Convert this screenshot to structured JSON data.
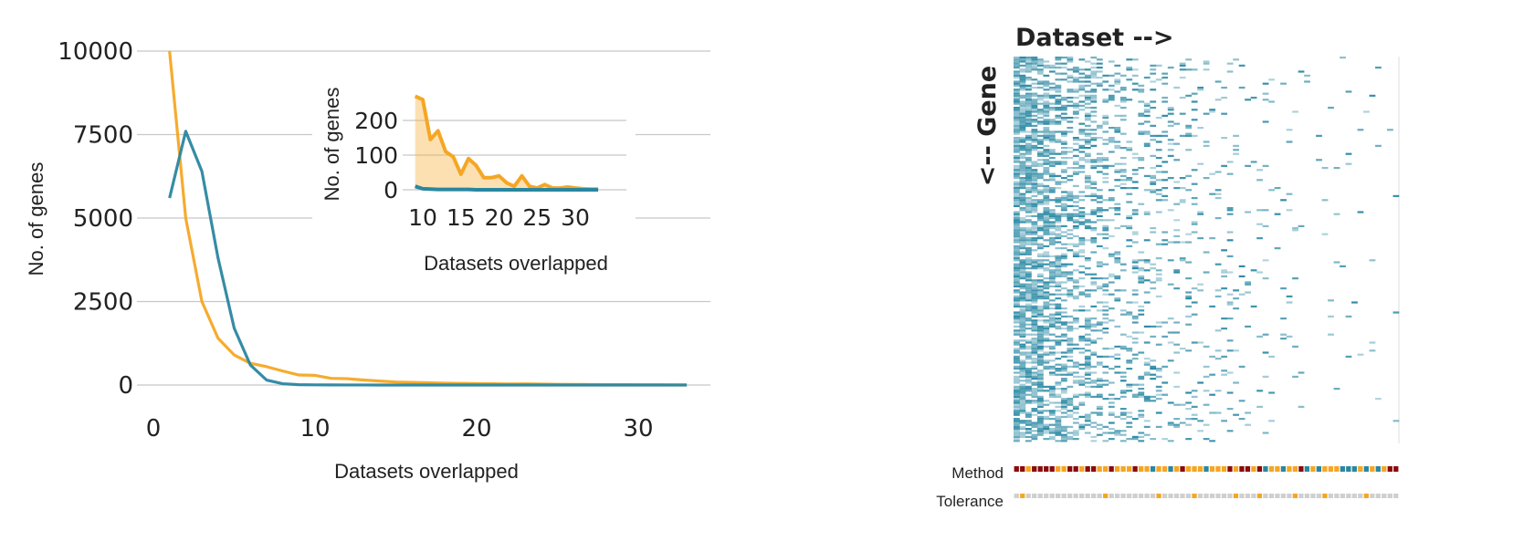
{
  "colors": {
    "orange": "#F5A623",
    "teal": "#2A86A0",
    "grid": "#c8c8c8",
    "heat": "#2E8BA5",
    "method_red": "#8B0A0A",
    "method_orange": "#F5A623",
    "method_teal": "#2A86A0",
    "tolerance_grey": "#cfcfcf"
  },
  "chart_data": [
    {
      "type": "line",
      "x": [
        1,
        2,
        3,
        4,
        5,
        6,
        7,
        8,
        9,
        10,
        11,
        12,
        13,
        14,
        15,
        16,
        17,
        18,
        19,
        20,
        21,
        22,
        23,
        24,
        25,
        26,
        27,
        28,
        29,
        30,
        31,
        32,
        33
      ],
      "series": [
        {
          "color": "#F5A623",
          "values": [
            10000,
            5000,
            2500,
            1400,
            900,
            650,
            550,
            420,
            300,
            290,
            200,
            190,
            150,
            120,
            90,
            80,
            70,
            55,
            50,
            40,
            38,
            30,
            35,
            28,
            20,
            18,
            15,
            12,
            10,
            8,
            6,
            5,
            4
          ]
        },
        {
          "color": "#2A86A0",
          "values": [
            5600,
            7600,
            6400,
            3800,
            1700,
            600,
            150,
            40,
            10,
            5,
            3,
            2,
            2,
            1,
            1,
            1,
            0,
            0,
            0,
            0,
            0,
            0,
            0,
            0,
            0,
            0,
            0,
            0,
            0,
            0,
            0,
            0,
            0
          ]
        }
      ],
      "xlabel": "Datasets overlapped",
      "ylabel": "No. of genes",
      "xlim": [
        0,
        33
      ],
      "ylim": [
        0,
        10000
      ],
      "xticks": [
        "0",
        "10",
        "20",
        "30"
      ],
      "yticks": [
        "0",
        "2500",
        "5000",
        "7500",
        "10000"
      ],
      "grid": "horizontal"
    },
    {
      "type": "area",
      "x": [
        9,
        10,
        11,
        12,
        13,
        14,
        15,
        16,
        17,
        18,
        19,
        20,
        21,
        22,
        23,
        24,
        25,
        26,
        27,
        28,
        29,
        30,
        31,
        32,
        33
      ],
      "series": [
        {
          "color": "#F5A623",
          "values": [
            270,
            260,
            145,
            170,
            110,
            95,
            45,
            90,
            70,
            35,
            35,
            40,
            20,
            10,
            40,
            10,
            5,
            15,
            5,
            5,
            8,
            5,
            3,
            2,
            2
          ]
        },
        {
          "color": "#2A86A0",
          "values": [
            10,
            3,
            2,
            1,
            1,
            1,
            1,
            1,
            0,
            0,
            0,
            0,
            0,
            0,
            0,
            0,
            0,
            0,
            0,
            0,
            0,
            0,
            0,
            0,
            0
          ]
        }
      ],
      "xlabel": "Datasets overlapped",
      "ylabel": "No. of genes",
      "xlim": [
        9,
        34
      ],
      "ylim": [
        0,
        280
      ],
      "xticks": [
        "10",
        "15",
        "20",
        "25",
        "30"
      ],
      "yticks": [
        "0",
        "100",
        "200"
      ],
      "grid": "horizontal"
    },
    {
      "type": "heatmap",
      "title": "Dataset -->",
      "ylabel": "<-- Gene",
      "columns": 65,
      "tracks": [
        {
          "label": "Method",
          "values": [
            "r",
            "r",
            "o",
            "r",
            "r",
            "r",
            "r",
            "o",
            "o",
            "r",
            "r",
            "o",
            "r",
            "r",
            "o",
            "o",
            "r",
            "o",
            "o",
            "o",
            "r",
            "o",
            "o",
            "t",
            "o",
            "o",
            "t",
            "o",
            "r",
            "o",
            "o",
            "o",
            "t",
            "o",
            "o",
            "o",
            "r",
            "o",
            "r",
            "r",
            "o",
            "r",
            "t",
            "o",
            "o",
            "t",
            "o",
            "o",
            "r",
            "t",
            "o",
            "t",
            "o",
            "o",
            "o",
            "t",
            "t",
            "t",
            "o",
            "t",
            "o",
            "t",
            "o",
            "r",
            "r"
          ]
        },
        {
          "label": "Tolerance",
          "values": [
            0,
            1,
            0,
            0,
            0,
            0,
            0,
            0,
            0,
            0,
            0,
            0,
            0,
            0,
            0,
            1,
            0,
            0,
            0,
            0,
            0,
            0,
            0,
            0,
            1,
            0,
            0,
            0,
            0,
            0,
            1,
            0,
            0,
            0,
            0,
            0,
            0,
            1,
            0,
            0,
            0,
            1,
            0,
            0,
            0,
            0,
            0,
            1,
            0,
            0,
            0,
            0,
            1,
            0,
            0,
            0,
            0,
            0,
            0,
            1,
            0,
            0,
            0,
            0,
            0
          ]
        }
      ]
    }
  ]
}
